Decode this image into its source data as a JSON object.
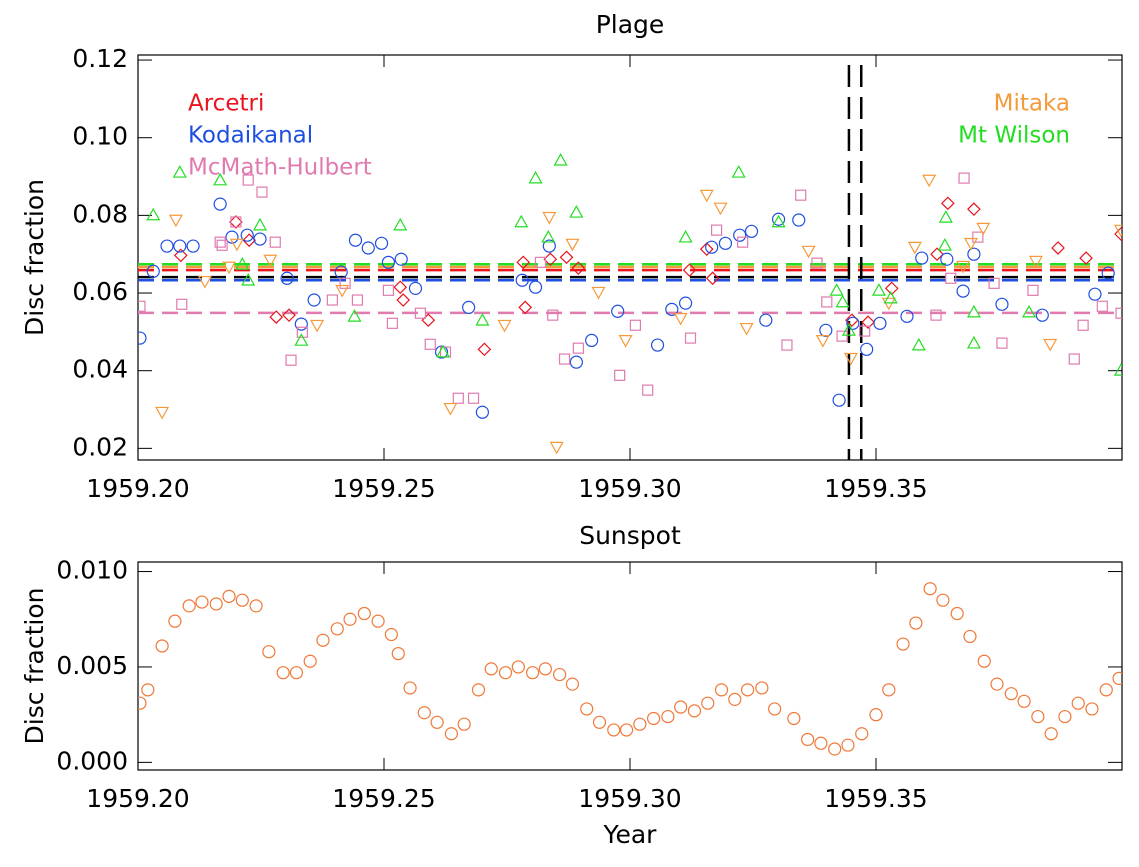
{
  "chart_data": [
    {
      "type": "scatter",
      "title": "Plage",
      "ylabel": "Disc fraction",
      "xlim": [
        1959.2,
        1959.4
      ],
      "ylim": [
        0.017,
        0.1213
      ],
      "xticks": [
        {
          "value": 1959.2,
          "label": "1959.20"
        },
        {
          "value": 1959.25,
          "label": "1959.25"
        },
        {
          "value": 1959.3,
          "label": "1959.30"
        },
        {
          "value": 1959.35,
          "label": "1959.35"
        }
      ],
      "yticks": [
        {
          "value": 0.02,
          "label": "0.02"
        },
        {
          "value": 0.04,
          "label": "0.04"
        },
        0.06,
        0.08,
        {
          "value": 0.1,
          "label": "0.10"
        },
        0.12
      ],
      "hlines": [
        {
          "value": 0.0641,
          "color": "#000000"
        }
      ],
      "vlines": [
        1959.3445,
        1959.347
      ],
      "series": [
        {
          "name": "Arcetri",
          "color": "#e8141e",
          "marker": "diamond",
          "mean": 0.0659,
          "x": [
            1959.2087,
            1959.2199,
            1959.2226,
            1959.2281,
            1959.2307,
            1959.2533,
            1959.2539,
            1959.259,
            1959.2704,
            1959.2783,
            1959.2787,
            1959.2838,
            1959.2871,
            1959.2895,
            1959.3121,
            1959.3156,
            1959.3168,
            1959.3451,
            1959.3484,
            1959.3532,
            1959.3624,
            1959.3646,
            1959.3699,
            1959.387,
            1959.3927,
            1959.3998
          ],
          "values": [
            0.0697,
            0.0783,
            0.0736,
            0.0538,
            0.0543,
            0.0615,
            0.0582,
            0.053,
            0.0455,
            0.0679,
            0.0563,
            0.0687,
            0.0692,
            0.0664,
            0.0659,
            0.0713,
            0.0638,
            0.053,
            0.0525,
            0.0612,
            0.07,
            0.0831,
            0.0816,
            0.0716,
            0.069,
            0.0752
          ]
        },
        {
          "name": "Kodaikanal",
          "color": "#1f4fe0",
          "marker": "circle",
          "mean": 0.0633,
          "x": [
            1959.2004,
            1959.2031,
            1959.2059,
            1959.2085,
            1959.2112,
            1959.2167,
            1959.2191,
            1959.2222,
            1959.2248,
            1959.2303,
            1959.2332,
            1959.2358,
            1959.2413,
            1959.2442,
            1959.2468,
            1959.2495,
            1959.2509,
            1959.2535,
            1959.2564,
            1959.2617,
            1959.2672,
            1959.27,
            1959.2781,
            1959.2808,
            1959.2836,
            1959.2891,
            1959.2922,
            1959.2975,
            1959.3056,
            1959.3085,
            1959.3113,
            1959.3166,
            1959.3194,
            1959.3223,
            1959.3247,
            1959.3276,
            1959.3302,
            1959.3343,
            1959.3398,
            1959.3425,
            1959.3453,
            1959.3481,
            1959.3508,
            1959.3563,
            1959.3593,
            1959.3644,
            1959.3677,
            1959.3699,
            1959.3756,
            1959.3838,
            1959.3945,
            1959.3972
          ],
          "values": [
            0.0484,
            0.0656,
            0.0721,
            0.0721,
            0.0721,
            0.0829,
            0.0744,
            0.0749,
            0.0739,
            0.0638,
            0.052,
            0.0582,
            0.0654,
            0.0736,
            0.0716,
            0.0728,
            0.0679,
            0.0687,
            0.0612,
            0.0448,
            0.0563,
            0.0293,
            0.0633,
            0.0615,
            0.0721,
            0.0422,
            0.0478,
            0.0553,
            0.0466,
            0.0558,
            0.0574,
            0.0718,
            0.0728,
            0.0749,
            0.0759,
            0.053,
            0.079,
            0.0788,
            0.0504,
            0.0324,
            0.0522,
            0.0455,
            0.0522,
            0.054,
            0.069,
            0.0687,
            0.0605,
            0.07,
            0.0571,
            0.0543,
            0.0597,
            0.0651
          ]
        },
        {
          "name": "McMath-Hulbert",
          "color": "#e07aaf",
          "marker": "square",
          "mean": 0.0549,
          "x": [
            1959.2004,
            1959.2089,
            1959.2167,
            1959.2171,
            1959.2199,
            1959.2224,
            1959.2252,
            1959.2279,
            1959.2311,
            1959.2334,
            1959.2395,
            1959.2421,
            1959.2446,
            1959.2509,
            1959.2517,
            1959.2574,
            1959.2594,
            1959.2625,
            1959.2651,
            1959.2682,
            1959.2818,
            1959.2843,
            1959.2867,
            1959.2895,
            1959.2979,
            1959.3011,
            1959.3036,
            1959.3123,
            1959.3176,
            1959.3229,
            1959.3319,
            1959.3347,
            1959.338,
            1959.34,
            1959.3431,
            1959.3477,
            1959.3622,
            1959.3652,
            1959.3679,
            1959.3707,
            1959.374,
            1959.3756,
            1959.3819,
            1959.3903,
            1959.3921,
            1959.396,
            1959.3998
          ],
          "values": [
            0.0566,
            0.0571,
            0.0731,
            0.0723,
            0.0783,
            0.0891,
            0.086,
            0.0731,
            0.0427,
            0.0499,
            0.0582,
            0.0625,
            0.0582,
            0.0607,
            0.0522,
            0.0548,
            0.0468,
            0.0448,
            0.0329,
            0.0329,
            0.0679,
            0.0543,
            0.043,
            0.0458,
            0.0388,
            0.0517,
            0.035,
            0.0484,
            0.0762,
            0.0731,
            0.0466,
            0.0852,
            0.0677,
            0.0577,
            0.0489,
            0.0502,
            0.0543,
            0.0638,
            0.0896,
            0.0744,
            0.0625,
            0.0471,
            0.0607,
            0.043,
            0.0517,
            0.0566,
            0.0548
          ]
        },
        {
          "name": "Mitaka",
          "color": "#f59a3a",
          "marker": "triangle-down",
          "mean": 0.0667,
          "x": [
            1959.2049,
            1959.2077,
            1959.2136,
            1959.2185,
            1959.2201,
            1959.2269,
            1959.2364,
            1959.2415,
            1959.2635,
            1959.2745,
            1959.2836,
            1959.2851,
            1959.2883,
            1959.2936,
            1959.2991,
            1959.3103,
            1959.3156,
            1959.3184,
            1959.3237,
            1959.3363,
            1959.3392,
            1959.3449,
            1959.3526,
            1959.3579,
            1959.3608,
            1959.3677,
            1959.3693,
            1959.3718,
            1959.3825,
            1959.3854,
            1959.3998
          ],
          "values": [
            0.0293,
            0.0788,
            0.063,
            0.0667,
            0.0726,
            0.0685,
            0.0517,
            0.0607,
            0.0303,
            0.0517,
            0.0795,
            0.0203,
            0.0726,
            0.0602,
            0.0478,
            0.0535,
            0.0852,
            0.0819,
            0.0509,
            0.0708,
            0.0478,
            0.0432,
            0.0574,
            0.0718,
            0.0891,
            0.0669,
            0.0728,
            0.0767,
            0.0682,
            0.0468,
            0.0762
          ]
        },
        {
          "name": "Mt Wilson",
          "color": "#22dd22",
          "marker": "triangle-up",
          "mean": 0.0674,
          "x": [
            1959.2031,
            1959.2085,
            1959.2167,
            1959.2224,
            1959.2248,
            1959.2212,
            1959.2332,
            1959.244,
            1959.2533,
            1959.262,
            1959.27,
            1959.2779,
            1959.2808,
            1959.2834,
            1959.2859,
            1959.2891,
            1959.3113,
            1959.3221,
            1959.3302,
            1959.342,
            1959.3432,
            1959.3445,
            1959.3506,
            1959.353,
            1959.3587,
            1959.364,
            1959.3642,
            1959.3699,
            1959.3699,
            1959.3811,
            1959.3998
          ],
          "values": [
            0.0801,
            0.0911,
            0.0891,
            0.0633,
            0.0775,
            0.0674,
            0.0478,
            0.054,
            0.0775,
            0.0448,
            0.053,
            0.0783,
            0.0896,
            0.0744,
            0.0942,
            0.0808,
            0.0744,
            0.0911,
            0.0783,
            0.0607,
            0.0577,
            0.0504,
            0.0607,
            0.0587,
            0.0466,
            0.0723,
            0.0795,
            0.0551,
            0.0471,
            0.0551,
            0.0401
          ]
        }
      ]
    },
    {
      "type": "scatter",
      "title": "Sunspot",
      "ylabel": "Disc fraction",
      "xlabel": "Year",
      "xlim": [
        1959.2,
        1959.4
      ],
      "ylim": [
        -0.0004,
        0.0105
      ],
      "xticks": [
        {
          "value": 1959.2,
          "label": "1959.20"
        },
        {
          "value": 1959.25,
          "label": "1959.25"
        },
        {
          "value": 1959.3,
          "label": "1959.30"
        },
        {
          "value": 1959.35,
          "label": "1959.35"
        }
      ],
      "yticks": [
        {
          "value": 0,
          "label": "0.000"
        },
        0.005,
        {
          "value": 0.01,
          "label": "0.010"
        }
      ],
      "series": [
        {
          "color": "#f07838",
          "marker": "circle",
          "x": [
            1959.2004,
            1959.202,
            1959.2049,
            1959.2075,
            1959.2104,
            1959.213,
            1959.2159,
            1959.2185,
            1959.2212,
            1959.224,
            1959.2266,
            1959.2295,
            1959.2322,
            1959.235,
            1959.2376,
            1959.2405,
            1959.2431,
            1959.246,
            1959.2488,
            1959.2515,
            1959.2529,
            1959.2553,
            1959.2582,
            1959.2608,
            1959.2637,
            1959.2663,
            1959.2692,
            1959.2718,
            1959.2747,
            1959.2773,
            1959.2802,
            1959.2828,
            1959.2857,
            1959.2883,
            1959.2912,
            1959.2938,
            1959.2967,
            1959.2993,
            1959.302,
            1959.3048,
            1959.3077,
            1959.3103,
            1959.3131,
            1959.3158,
            1959.3186,
            1959.3213,
            1959.3239,
            1959.3268,
            1959.3294,
            1959.3333,
            1959.3361,
            1959.3388,
            1959.3416,
            1959.3443,
            1959.3471,
            1959.35,
            1959.3526,
            1959.3555,
            1959.3581,
            1959.361,
            1959.3636,
            1959.3665,
            1959.3691,
            1959.372,
            1959.3746,
            1959.3775,
            1959.3801,
            1959.3829,
            1959.3856,
            1959.3884,
            1959.3911,
            1959.3939,
            1959.3968,
            1959.3994
          ],
          "values": [
            0.0031,
            0.0038,
            0.0061,
            0.0074,
            0.0082,
            0.0084,
            0.0083,
            0.0087,
            0.0085,
            0.0082,
            0.0058,
            0.0047,
            0.0047,
            0.0053,
            0.0064,
            0.007,
            0.0075,
            0.0078,
            0.0074,
            0.0067,
            0.0057,
            0.0039,
            0.0026,
            0.0021,
            0.0015,
            0.002,
            0.0038,
            0.0049,
            0.0047,
            0.005,
            0.0047,
            0.0049,
            0.0046,
            0.0041,
            0.0028,
            0.0021,
            0.0017,
            0.0017,
            0.002,
            0.0023,
            0.0024,
            0.0029,
            0.0027,
            0.0031,
            0.0038,
            0.0033,
            0.0038,
            0.0039,
            0.0028,
            0.0023,
            0.0012,
            0.001,
            0.0007,
            0.0009,
            0.0015,
            0.0025,
            0.0038,
            0.0062,
            0.0073,
            0.0091,
            0.0085,
            0.0078,
            0.0066,
            0.0053,
            0.0041,
            0.0036,
            0.0032,
            0.0024,
            0.0015,
            0.0024,
            0.0031,
            0.0028,
            0.0038,
            0.0044
          ]
        }
      ]
    }
  ]
}
